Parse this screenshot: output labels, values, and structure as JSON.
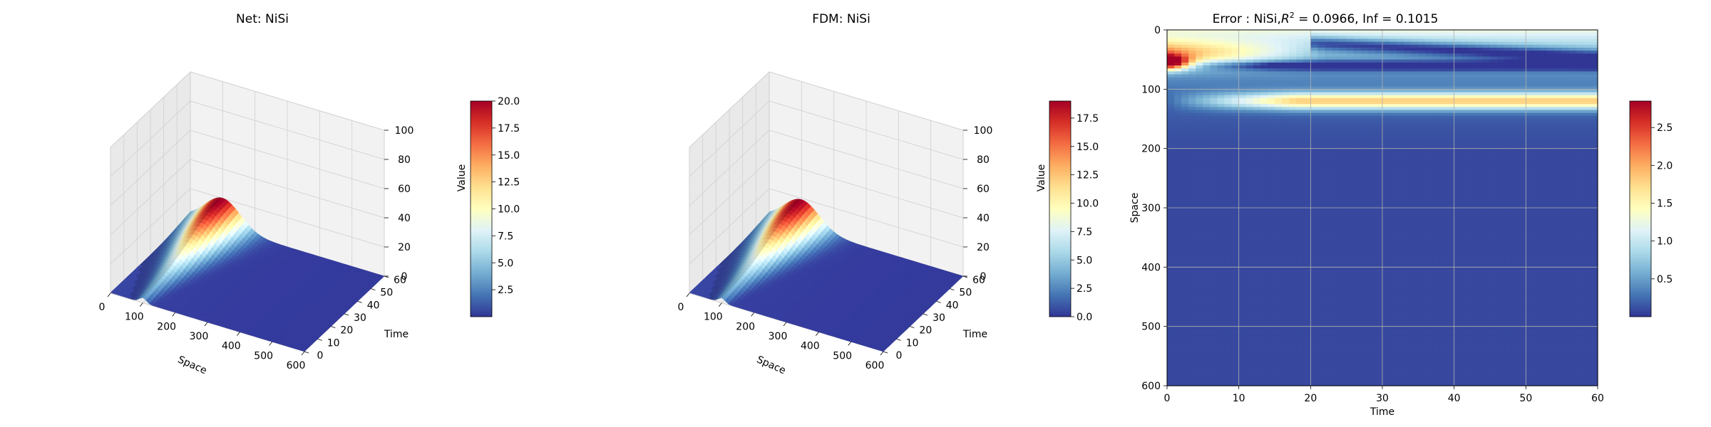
{
  "colors": {
    "colormap": "RdYlBu_r",
    "cmap_stops": [
      "#313695",
      "#4575b4",
      "#74add1",
      "#abd9e9",
      "#e0f3f8",
      "#ffffbf",
      "#fee090",
      "#fdae61",
      "#f46d43",
      "#d73027",
      "#a50026"
    ],
    "pane": "#f2f2f2",
    "grid": "#cccccc"
  },
  "chart_data": [
    {
      "type": "surface3d",
      "title": "Net: NiSi",
      "xlabel": "Space",
      "ylabel": "Time",
      "zlabel": "Value",
      "xlim": [
        0,
        600
      ],
      "ylim": [
        0,
        60
      ],
      "zlim": [
        0,
        100
      ],
      "xticks": [
        "0",
        "100",
        "200",
        "300",
        "400",
        "500",
        "600"
      ],
      "yticks": [
        "0",
        "10",
        "20",
        "30",
        "40",
        "50",
        "60"
      ],
      "zticks": [
        "0",
        "20",
        "40",
        "60",
        "80",
        "100"
      ],
      "surface": {
        "peak_space": 100,
        "peak_value": 20,
        "width_at_t0": 10,
        "width_at_t60": 55
      },
      "colorbar": {
        "min": 0,
        "max": 20,
        "ticks": [
          "2.5",
          "5.0",
          "7.5",
          "10.0",
          "12.5",
          "15.0",
          "17.5",
          "20.0"
        ]
      }
    },
    {
      "type": "surface3d",
      "title": "FDM: NiSi",
      "xlabel": "Space",
      "ylabel": "Time",
      "zlabel": "Value",
      "xlim": [
        0,
        600
      ],
      "ylim": [
        0,
        60
      ],
      "zlim": [
        0,
        100
      ],
      "xticks": [
        "0",
        "100",
        "200",
        "300",
        "400",
        "500",
        "600"
      ],
      "yticks": [
        "0",
        "10",
        "20",
        "30",
        "40",
        "50",
        "60"
      ],
      "zticks": [
        "0",
        "20",
        "40",
        "60",
        "80",
        "100"
      ],
      "surface": {
        "peak_space": 100,
        "peak_value": 19,
        "width_at_t0": 10,
        "width_at_t60": 55
      },
      "colorbar": {
        "min": 0,
        "max": 19,
        "ticks": [
          "0.0",
          "2.5",
          "5.0",
          "7.5",
          "10.0",
          "12.5",
          "15.0",
          "17.5"
        ]
      }
    },
    {
      "type": "heatmap",
      "title_prefix": "Error : NiSi,",
      "title_r": "R",
      "title_sup": "2",
      "title_suffix": " = 0.0966, Inf = 0.1015",
      "xlabel": "Time",
      "ylabel": "Space",
      "xlim": [
        0,
        60
      ],
      "ylim": [
        600,
        0
      ],
      "xticks": [
        "0",
        "10",
        "20",
        "30",
        "40",
        "50",
        "60"
      ],
      "yticks": [
        "0",
        "100",
        "200",
        "300",
        "400",
        "500",
        "600"
      ],
      "grid": true,
      "colorbar": {
        "min": 0,
        "max": 2.85,
        "ticks": [
          "0.5",
          "1.0",
          "1.5",
          "2.0",
          "2.5"
        ]
      }
    }
  ]
}
